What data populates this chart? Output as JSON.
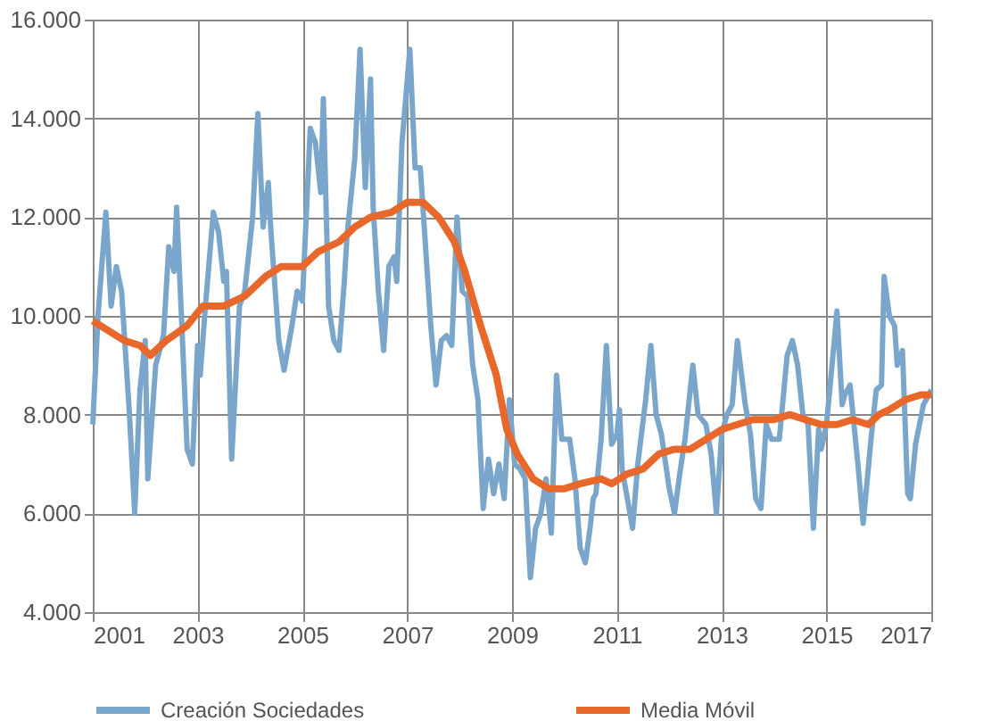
{
  "chart_data": {
    "type": "line",
    "xlim": [
      2001,
      2017
    ],
    "xticks": [
      2001,
      2003,
      2005,
      2007,
      2009,
      2011,
      2013,
      2015,
      2017
    ],
    "ylim": [
      4000,
      16000
    ],
    "yticks": [
      {
        "value": 4000,
        "label": "4.000"
      },
      {
        "value": 6000,
        "label": "6.000"
      },
      {
        "value": 8000,
        "label": "8.000"
      },
      {
        "value": 10000,
        "label": "10.000"
      },
      {
        "value": 12000,
        "label": "12.000"
      },
      {
        "value": 14000,
        "label": "14.000"
      },
      {
        "value": 16000,
        "label": "16.000"
      }
    ],
    "grid": true,
    "legend": "bottom",
    "marker": "none",
    "line_style": "solid",
    "series": [
      {
        "name": "Creación Sociedades",
        "color": "#7aa6cb",
        "x": [
          2001.0,
          2001.1,
          2001.25,
          2001.35,
          2001.45,
          2001.55,
          2001.7,
          2001.8,
          2001.9,
          2002.0,
          2002.05,
          2002.2,
          2002.35,
          2002.45,
          2002.55,
          2002.6,
          2002.7,
          2002.8,
          2002.9,
          2003.0,
          2003.05,
          2003.15,
          2003.3,
          2003.4,
          2003.5,
          2003.55,
          2003.65,
          2003.8,
          2003.9,
          2004.05,
          2004.15,
          2004.25,
          2004.35,
          2004.4,
          2004.55,
          2004.65,
          2004.8,
          2004.9,
          2005.0,
          2005.15,
          2005.25,
          2005.35,
          2005.4,
          2005.5,
          2005.6,
          2005.7,
          2005.8,
          2005.85,
          2006.0,
          2006.1,
          2006.2,
          2006.3,
          2006.35,
          2006.45,
          2006.55,
          2006.65,
          2006.75,
          2006.8,
          2006.9,
          2007.05,
          2007.15,
          2007.25,
          2007.35,
          2007.45,
          2007.55,
          2007.65,
          2007.75,
          2007.85,
          2007.95,
          2008.05,
          2008.15,
          2008.25,
          2008.35,
          2008.45,
          2008.55,
          2008.65,
          2008.75,
          2008.85,
          2008.95,
          2009.05,
          2009.15,
          2009.25,
          2009.35,
          2009.45,
          2009.55,
          2009.65,
          2009.75,
          2009.85,
          2009.95,
          2010.1,
          2010.2,
          2010.3,
          2010.4,
          2010.5,
          2010.55,
          2010.6,
          2010.7,
          2010.8,
          2010.9,
          2011.0,
          2011.05,
          2011.1,
          2011.2,
          2011.3,
          2011.4,
          2011.55,
          2011.65,
          2011.75,
          2011.85,
          2012.0,
          2012.1,
          2012.2,
          2012.3,
          2012.45,
          2012.55,
          2012.7,
          2012.8,
          2012.9,
          2013.0,
          2013.1,
          2013.2,
          2013.3,
          2013.45,
          2013.55,
          2013.65,
          2013.75,
          2013.85,
          2013.95,
          2014.1,
          2014.25,
          2014.35,
          2014.45,
          2014.55,
          2014.65,
          2014.75,
          2014.85,
          2014.9,
          2015.0,
          2015.15,
          2015.2,
          2015.3,
          2015.35,
          2015.45,
          2015.6,
          2015.7,
          2015.85,
          2015.95,
          2016.05,
          2016.1,
          2016.2,
          2016.3,
          2016.35,
          2016.45,
          2016.55,
          2016.6,
          2016.7,
          2016.85,
          2017.0
        ],
        "values": [
          7800,
          10000,
          12100,
          10200,
          11000,
          10500,
          8000,
          6000,
          8500,
          9500,
          6700,
          9000,
          9600,
          11400,
          10900,
          12200,
          9800,
          7300,
          7000,
          9400,
          8800,
          10200,
          12100,
          11700,
          10700,
          10900,
          7100,
          10200,
          10500,
          12000,
          14100,
          11800,
          12700,
          11700,
          9500,
          8900,
          9800,
          10500,
          10300,
          13800,
          13500,
          12500,
          14400,
          10200,
          9500,
          9300,
          10700,
          11600,
          13200,
          15400,
          12600,
          14800,
          12200,
          10500,
          9300,
          11000,
          11200,
          10700,
          13500,
          15400,
          13000,
          13000,
          11400,
          9800,
          8600,
          9500,
          9600,
          9400,
          12000,
          10500,
          10400,
          9000,
          8300,
          6100,
          7100,
          6400,
          7000,
          6300,
          8300,
          7000,
          6900,
          6700,
          4700,
          5700,
          6000,
          6700,
          5600,
          8800,
          7500,
          7500,
          6700,
          5300,
          5000,
          5800,
          6300,
          6400,
          7500,
          9400,
          7400,
          7600,
          8100,
          6900,
          6300,
          5700,
          7000,
          8300,
          9400,
          8000,
          7600,
          6500,
          6000,
          6800,
          7500,
          9000,
          8000,
          7800,
          7200,
          6000,
          7600,
          8000,
          8200,
          9500,
          8200,
          7600,
          6300,
          6100,
          7800,
          7500,
          7500,
          9200,
          9500,
          9000,
          8000,
          7800,
          5700,
          7700,
          7300,
          7800,
          9500,
          10100,
          8200,
          8400,
          8600,
          7000,
          5800,
          7500,
          8500,
          8600,
          10800,
          10000,
          9800,
          9000,
          9300,
          6400,
          6300,
          7400,
          8200,
          8500
        ]
      },
      {
        "name": "Media Móvil",
        "color": "#e8672a",
        "x": [
          2001.0,
          2001.3,
          2001.6,
          2001.9,
          2002.1,
          2002.4,
          2002.8,
          2003.1,
          2003.5,
          2003.9,
          2004.3,
          2004.6,
          2005.0,
          2005.3,
          2005.7,
          2006.0,
          2006.3,
          2006.7,
          2007.0,
          2007.3,
          2007.6,
          2007.9,
          2008.1,
          2008.4,
          2008.7,
          2008.9,
          2009.1,
          2009.4,
          2009.7,
          2010.0,
          2010.3,
          2010.7,
          2010.9,
          2011.2,
          2011.5,
          2011.8,
          2012.1,
          2012.4,
          2012.7,
          2013.0,
          2013.3,
          2013.6,
          2014.0,
          2014.3,
          2014.6,
          2014.9,
          2015.2,
          2015.5,
          2015.8,
          2016.0,
          2016.2,
          2016.5,
          2016.8,
          2017.0
        ],
        "values": [
          9900,
          9700,
          9500,
          9400,
          9200,
          9500,
          9800,
          10200,
          10200,
          10400,
          10800,
          11000,
          11000,
          11300,
          11500,
          11800,
          12000,
          12100,
          12300,
          12300,
          12000,
          11500,
          10900,
          9800,
          8800,
          7700,
          7200,
          6700,
          6500,
          6500,
          6600,
          6700,
          6600,
          6800,
          6900,
          7200,
          7300,
          7300,
          7500,
          7700,
          7800,
          7900,
          7900,
          8000,
          7900,
          7800,
          7800,
          7900,
          7800,
          8000,
          8100,
          8300,
          8400,
          8400
        ]
      }
    ]
  }
}
